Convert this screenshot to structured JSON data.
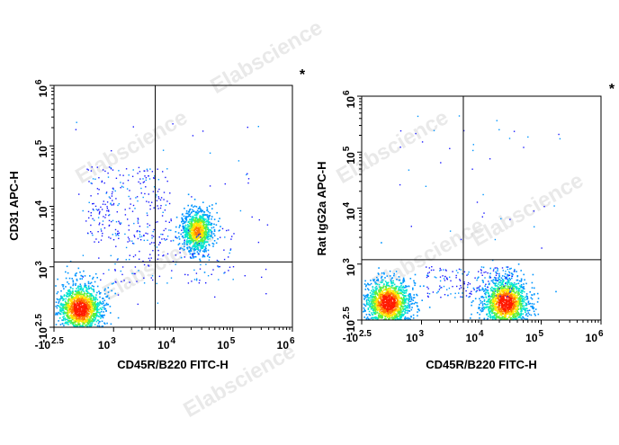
{
  "watermark": "Elabscience",
  "chart_data": [
    {
      "type": "scatter",
      "subtype": "flow-cytometry-density-dot-plot",
      "xlabel": "CD45R/B220 FITC-H",
      "ylabel": "CD31 APC-H",
      "marker": "*",
      "x_scale": "biexponential",
      "y_scale": "biexponential",
      "x_ticks": [
        {
          "base": "-10",
          "exp": "2.5",
          "value": -316
        },
        {
          "base": "10",
          "exp": "3",
          "value": 1000
        },
        {
          "base": "10",
          "exp": "4",
          "value": 10000
        },
        {
          "base": "10",
          "exp": "5",
          "value": 100000
        },
        {
          "base": "10",
          "exp": "6",
          "value": 1000000
        }
      ],
      "y_ticks": [
        {
          "base": "-10",
          "exp": "2.5",
          "value": -316
        },
        {
          "base": "10",
          "exp": "3",
          "value": 1000
        },
        {
          "base": "10",
          "exp": "4",
          "value": 10000
        },
        {
          "base": "10",
          "exp": "5",
          "value": 100000
        },
        {
          "base": "10",
          "exp": "6",
          "value": 1000000
        }
      ],
      "quadrant_gate": {
        "x": 5000,
        "y": 1200
      },
      "populations": [
        {
          "name": "",
          "center": [
            250,
            100
          ],
          "density": "high"
        },
        {
          "name": "",
          "center": [
            25000,
            4000
          ],
          "density": "medium"
        }
      ]
    },
    {
      "type": "scatter",
      "subtype": "flow-cytometry-density-dot-plot",
      "xlabel": "CD45R/B220 FITC-H",
      "ylabel": "Rat IgG2a APC-H",
      "marker": "*",
      "x_scale": "biexponential",
      "y_scale": "biexponential",
      "x_ticks": [
        {
          "base": "-10",
          "exp": "2.5",
          "value": -316
        },
        {
          "base": "10",
          "exp": "3",
          "value": 1000
        },
        {
          "base": "10",
          "exp": "4",
          "value": 10000
        },
        {
          "base": "10",
          "exp": "5",
          "value": 100000
        },
        {
          "base": "10",
          "exp": "6",
          "value": 1000000
        }
      ],
      "y_ticks": [
        {
          "base": "-10",
          "exp": "2.5",
          "value": -316
        },
        {
          "base": "10",
          "exp": "3",
          "value": 1000
        },
        {
          "base": "10",
          "exp": "4",
          "value": 10000
        },
        {
          "base": "10",
          "exp": "5",
          "value": 100000
        },
        {
          "base": "10",
          "exp": "6",
          "value": 1000000
        }
      ],
      "quadrant_gate": {
        "x": 5000,
        "y": 1200
      },
      "populations": [
        {
          "name": "",
          "center": [
            250,
            100
          ],
          "density": "high"
        },
        {
          "name": "",
          "center": [
            25000,
            100
          ],
          "density": "high"
        }
      ]
    }
  ]
}
